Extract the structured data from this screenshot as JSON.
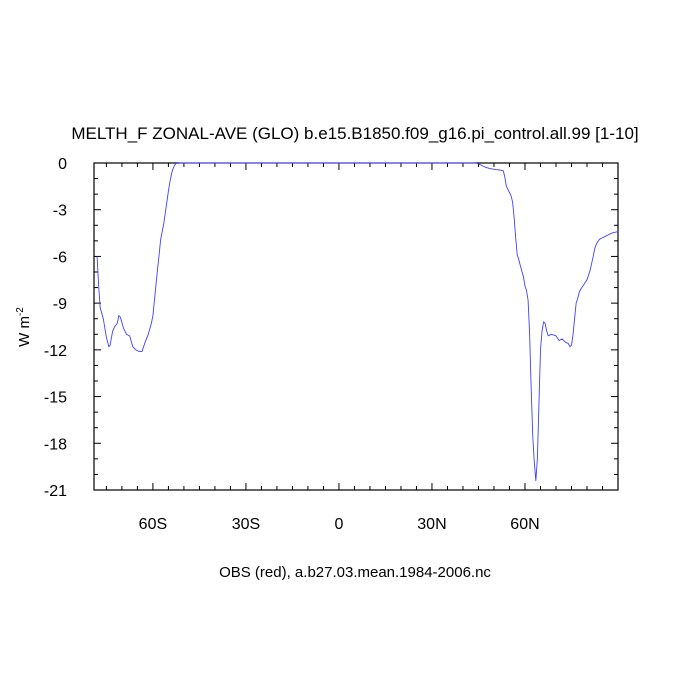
{
  "chart_data": {
    "type": "line",
    "title": "MELTH_F ZONAL-AVE (GLO) b.e15.B1850.f09_g16.pi_control.all.99 [1-10]",
    "ylabel_main": "W m",
    "ylabel_exp": "-2",
    "xlabel": "OBS (red), a.b27.03.mean.1984-2006.nc",
    "xlim": [
      -79,
      90
    ],
    "ylim": [
      -21,
      0
    ],
    "x_ticks": [
      {
        "value": -60,
        "label": "60S"
      },
      {
        "value": -30,
        "label": "30S"
      },
      {
        "value": 0,
        "label": "0"
      },
      {
        "value": 30,
        "label": "30N"
      },
      {
        "value": 60,
        "label": "60N"
      }
    ],
    "y_ticks": [
      {
        "value": 0,
        "label": "0"
      },
      {
        "value": -3,
        "label": "-3"
      },
      {
        "value": -6,
        "label": "-6"
      },
      {
        "value": -9,
        "label": "-9"
      },
      {
        "value": -12,
        "label": "-12"
      },
      {
        "value": -15,
        "label": "-15"
      },
      {
        "value": -18,
        "label": "-18"
      },
      {
        "value": -21,
        "label": "-21"
      }
    ],
    "line_color": "#4040ff",
    "series": [
      {
        "x": [
          -78,
          -77.5,
          -77,
          -76,
          -75.5,
          -75,
          -74.2,
          -73.8,
          -73,
          -72.3,
          -71.5,
          -71,
          -70.5,
          -69.5,
          -68.5,
          -67.5,
          -66.5,
          -65.5,
          -64.5,
          -63.5,
          -62.5,
          -61.5,
          -60.5,
          -60,
          -59.5,
          -59,
          -58.5,
          -58,
          -57.5,
          -56.5,
          -56,
          -55.5,
          -55,
          -54.5,
          -54,
          -53.5,
          -53,
          -52.5,
          -51,
          -45,
          -30,
          0,
          30,
          44,
          45,
          46,
          47,
          48.5,
          50.5,
          52,
          53,
          53.5,
          54,
          55,
          55.5,
          56,
          56.5,
          57,
          57.5,
          58,
          58.5,
          59.5,
          60,
          60.5,
          61,
          61.5,
          62,
          62.5,
          63,
          63.5,
          64,
          64.5,
          65,
          65.5,
          66,
          66.5,
          67,
          67.5,
          68.5,
          70,
          71,
          72,
          73,
          74,
          74.5,
          75,
          75.5,
          76,
          76.5,
          77,
          77.5,
          78,
          79,
          80,
          81,
          82,
          82.5,
          83,
          84,
          85,
          86,
          87,
          88,
          89,
          90
        ],
        "y": [
          -6.0,
          -7.9,
          -9.3,
          -10.0,
          -10.6,
          -11.2,
          -11.8,
          -11.7,
          -10.8,
          -10.5,
          -10.3,
          -9.8,
          -9.9,
          -10.6,
          -11.0,
          -11.1,
          -11.8,
          -12.0,
          -12.1,
          -12.1,
          -11.5,
          -11.0,
          -10.3,
          -9.8,
          -8.8,
          -7.8,
          -6.8,
          -5.9,
          -4.9,
          -3.9,
          -3.2,
          -2.5,
          -1.8,
          -1.2,
          -0.7,
          -0.35,
          -0.15,
          -0.03,
          0.0,
          0.0,
          0.0,
          0.0,
          0.0,
          0.0,
          -0.05,
          -0.15,
          -0.25,
          -0.35,
          -0.42,
          -0.45,
          -0.5,
          -0.9,
          -1.5,
          -1.9,
          -2.1,
          -2.5,
          -3.5,
          -4.8,
          -5.9,
          -6.2,
          -6.6,
          -7.3,
          -7.9,
          -8.2,
          -8.8,
          -11.0,
          -14.5,
          -17.5,
          -19.2,
          -20.4,
          -19.0,
          -15.5,
          -12.0,
          -10.8,
          -10.2,
          -10.3,
          -10.8,
          -11.1,
          -11.0,
          -11.1,
          -11.4,
          -11.3,
          -11.5,
          -11.6,
          -11.8,
          -11.7,
          -11.0,
          -10.0,
          -9.0,
          -8.7,
          -8.3,
          -8.1,
          -7.8,
          -7.5,
          -6.9,
          -6.0,
          -5.5,
          -5.2,
          -4.9,
          -4.8,
          -4.7,
          -4.6,
          -4.5,
          -4.45,
          -4.4
        ]
      }
    ]
  }
}
